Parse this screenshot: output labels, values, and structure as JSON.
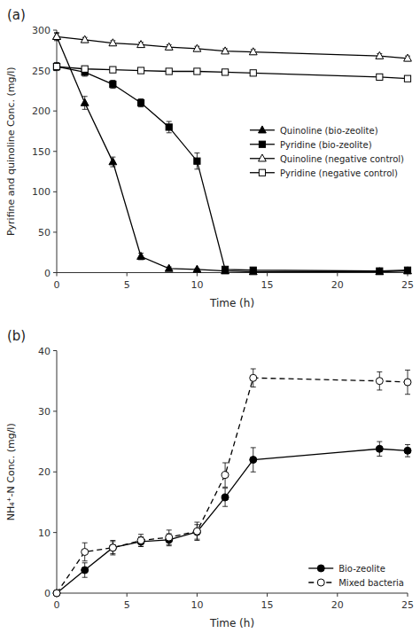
{
  "chart_data": [
    {
      "type": "line",
      "title": "(a)",
      "xlabel": "Time (h)",
      "ylabel": "Pyrifine and quinoline Conc. (mg/l)",
      "xlim": [
        0,
        25
      ],
      "ylim": [
        0,
        300
      ],
      "xticks": [
        0,
        5,
        10,
        15,
        20,
        25
      ],
      "yticks": [
        0,
        50,
        100,
        150,
        200,
        250,
        300
      ],
      "grid": false,
      "legend": "right",
      "x": [
        0,
        2,
        4,
        6,
        8,
        10,
        12,
        14,
        23,
        25
      ],
      "series": [
        {
          "name": "Quinoline (bio-zeolite)",
          "color": "#000000",
          "marker": "filled-triangle",
          "line_style": "solid",
          "values": [
            292,
            210,
            137,
            20,
            5,
            4,
            2,
            1,
            1,
            2
          ],
          "errors": [
            5,
            8,
            6,
            4,
            2,
            1,
            1,
            1,
            1,
            1
          ]
        },
        {
          "name": "Pyridine (bio-zeolite)",
          "color": "#000000",
          "marker": "filled-square",
          "line_style": "solid",
          "values": [
            255,
            248,
            233,
            210,
            180,
            138,
            4,
            3,
            2,
            3
          ],
          "errors": [
            5,
            5,
            5,
            5,
            7,
            10,
            2,
            1,
            1,
            1
          ]
        },
        {
          "name": "Quinoline (negative control)",
          "color": "#000000",
          "marker": "open-triangle",
          "line_style": "solid",
          "values": [
            292,
            288,
            284,
            282,
            279,
            277,
            274,
            273,
            268,
            265
          ],
          "errors": [
            4,
            3,
            3,
            3,
            3,
            3,
            3,
            3,
            3,
            3
          ]
        },
        {
          "name": "Pyridine (negative control)",
          "color": "#000000",
          "marker": "open-square",
          "line_style": "solid",
          "values": [
            255,
            252,
            251,
            250,
            249,
            249,
            248,
            247,
            242,
            240
          ],
          "errors": [
            3,
            3,
            3,
            3,
            3,
            3,
            3,
            3,
            3,
            3
          ]
        }
      ]
    },
    {
      "type": "line",
      "title": "(b)",
      "xlabel": "Time (h)",
      "ylabel": "NH₄⁺-N Conc. (mg/l)",
      "xlim": [
        0,
        25
      ],
      "ylim": [
        0,
        40
      ],
      "xticks": [
        0,
        5,
        10,
        15,
        20,
        25
      ],
      "yticks": [
        0,
        10,
        20,
        30,
        40
      ],
      "grid": false,
      "legend": "lower-right",
      "x": [
        0,
        2,
        4,
        6,
        8,
        10,
        12,
        14,
        23,
        25
      ],
      "series": [
        {
          "name": "Bio-zeolite",
          "color": "#000000",
          "marker": "filled-circle",
          "line_style": "solid",
          "values": [
            0,
            3.8,
            7.5,
            8.5,
            8.8,
            10.1,
            15.8,
            22.0,
            23.8,
            23.5
          ],
          "errors": [
            0,
            1.2,
            1.0,
            0.8,
            1.0,
            1.2,
            1.5,
            2.0,
            1.2,
            1.0
          ]
        },
        {
          "name": "Mixed bacteria",
          "color": "#000000",
          "marker": "open-circle",
          "line_style": "dashed",
          "values": [
            0,
            6.8,
            7.5,
            8.7,
            9.2,
            10.2,
            19.5,
            35.5,
            35.0,
            34.8
          ],
          "errors": [
            0,
            1.5,
            1.2,
            1.0,
            1.2,
            1.5,
            2.0,
            1.5,
            1.5,
            2.0
          ]
        }
      ]
    }
  ]
}
